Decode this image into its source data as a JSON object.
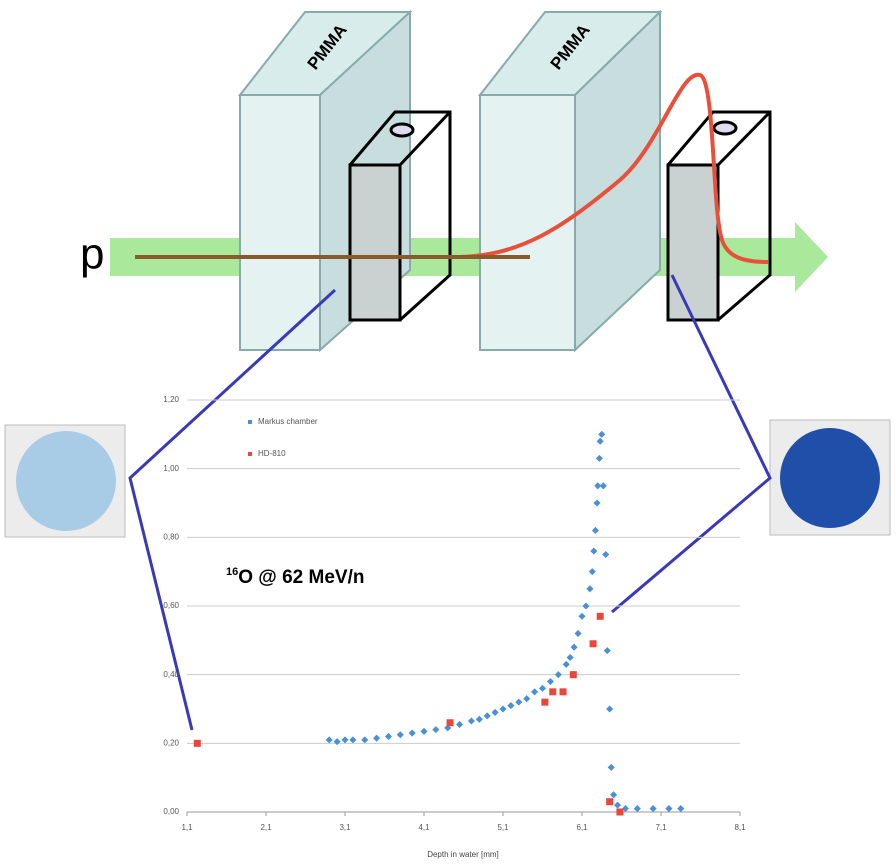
{
  "diagram": {
    "beam_label": "p",
    "block_labels": [
      "PMMA",
      "PMMA"
    ]
  },
  "chart_data": {
    "type": "scatter",
    "annotation": {
      "mass": "16",
      "text": "O @ 62 MeV/n"
    },
    "x_label": "Depth in water [mm]",
    "xlim": [
      1.1,
      8.1
    ],
    "xticks": [
      {
        "value": 1.1,
        "label": "1,1"
      },
      {
        "value": 2.1,
        "label": "2,1"
      },
      {
        "value": 3.1,
        "label": "3,1"
      },
      {
        "value": 4.1,
        "label": "4,1"
      },
      {
        "value": 5.1,
        "label": "5,1"
      },
      {
        "value": 6.1,
        "label": "6,1"
      },
      {
        "value": 7.1,
        "label": "7,1"
      },
      {
        "value": 8.1,
        "label": "8,1"
      }
    ],
    "ylim": [
      0,
      1.2
    ],
    "yticks": [
      {
        "value": 0,
        "label": "0,00"
      },
      {
        "value": 0.2,
        "label": "0,20"
      },
      {
        "value": 0.4,
        "label": "0,40"
      },
      {
        "value": 0.6,
        "label": "0,60"
      },
      {
        "value": 0.8,
        "label": "0,80"
      },
      {
        "value": 1.0,
        "label": "1,00"
      },
      {
        "value": 1.2,
        "label": "1,20"
      }
    ],
    "grid": true,
    "series": [
      {
        "name": "Markus chamber",
        "color": "#4a90d9",
        "x": [
          2.9,
          3.0,
          3.1,
          3.2,
          3.35,
          3.5,
          3.65,
          3.8,
          3.95,
          4.1,
          4.25,
          4.4,
          4.55,
          4.7,
          4.8,
          4.9,
          5.0,
          5.1,
          5.2,
          5.3,
          5.4,
          5.5,
          5.6,
          5.7,
          5.8,
          5.9,
          5.95,
          6.0,
          6.05,
          6.1,
          6.15,
          6.2,
          6.23,
          6.25,
          6.27,
          6.29,
          6.3,
          6.32,
          6.33,
          6.35,
          6.37,
          6.4,
          6.42,
          6.45,
          6.47,
          6.5,
          6.55,
          6.65,
          6.8,
          7.0,
          7.2,
          7.35
        ],
        "values": [
          0.21,
          0.205,
          0.21,
          0.21,
          0.21,
          0.215,
          0.22,
          0.225,
          0.23,
          0.235,
          0.24,
          0.245,
          0.255,
          0.265,
          0.27,
          0.28,
          0.29,
          0.3,
          0.31,
          0.32,
          0.33,
          0.35,
          0.36,
          0.38,
          0.4,
          0.43,
          0.45,
          0.48,
          0.52,
          0.57,
          0.6,
          0.65,
          0.7,
          0.76,
          0.82,
          0.9,
          0.95,
          1.03,
          1.08,
          1.1,
          0.95,
          0.75,
          0.47,
          0.3,
          0.13,
          0.05,
          0.02,
          0.01,
          0.01,
          0.01,
          0.01,
          0.01
        ]
      },
      {
        "name": "HD-810",
        "color": "#e8473c",
        "x": [
          1.23,
          4.43,
          5.63,
          5.73,
          5.86,
          5.99,
          6.24,
          6.33,
          6.45,
          6.58
        ],
        "values": [
          0.2,
          0.26,
          0.32,
          0.35,
          0.35,
          0.4,
          0.49,
          0.57,
          0.03,
          0.0
        ]
      }
    ]
  }
}
